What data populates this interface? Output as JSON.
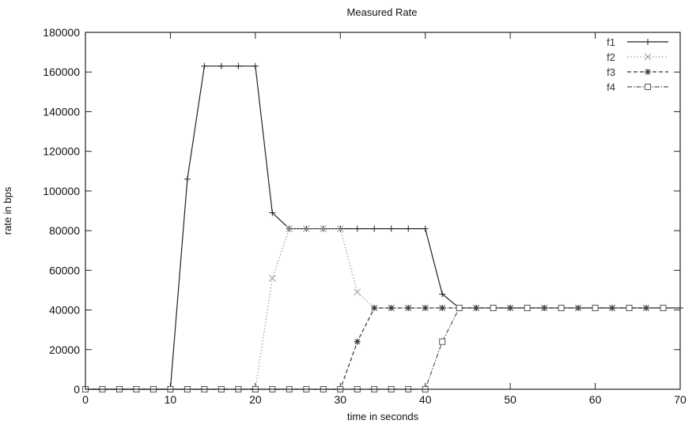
{
  "chart_data": {
    "type": "line",
    "title": "Measured Rate",
    "xlabel": "time in seconds",
    "ylabel": "rate in bps",
    "xlim": [
      0,
      70
    ],
    "ylim": [
      0,
      180000
    ],
    "xticks": [
      0,
      10,
      20,
      30,
      40,
      50,
      60,
      70
    ],
    "yticks": [
      0,
      20000,
      40000,
      60000,
      80000,
      100000,
      120000,
      140000,
      160000,
      180000
    ],
    "grid": false,
    "legend_position": "top-right",
    "series": [
      {
        "name": "f1",
        "color": "#222222",
        "dash": "solid",
        "marker": "plus",
        "x": [
          0,
          2,
          4,
          6,
          8,
          10,
          12,
          14,
          16,
          18,
          20,
          22,
          24,
          26,
          28,
          30,
          32,
          34,
          36,
          38,
          40,
          42,
          44,
          46,
          48,
          50,
          52,
          54,
          56,
          58,
          60,
          62,
          64,
          66,
          68,
          70
        ],
        "y": [
          0,
          0,
          0,
          0,
          0,
          0,
          106000,
          163000,
          163000,
          163000,
          163000,
          89000,
          81000,
          81000,
          81000,
          81000,
          81000,
          81000,
          81000,
          81000,
          81000,
          48000,
          41000,
          41000,
          41000,
          41000,
          41000,
          41000,
          41000,
          41000,
          41000,
          41000,
          41000,
          41000,
          41000,
          41000
        ]
      },
      {
        "name": "f2",
        "color": "#9a9a9a",
        "dash": "dotted",
        "marker": "cross",
        "x": [
          0,
          2,
          4,
          6,
          8,
          10,
          12,
          14,
          16,
          18,
          20,
          22,
          24,
          26,
          28,
          30,
          32,
          34,
          36,
          38,
          40,
          42,
          44,
          46,
          48,
          50,
          52,
          54,
          56,
          58,
          60,
          62,
          64,
          66,
          68
        ],
        "y": [
          0,
          0,
          0,
          0,
          0,
          0,
          0,
          0,
          0,
          0,
          0,
          56000,
          81000,
          81000,
          81000,
          81000,
          49000,
          41000,
          41000,
          41000,
          41000,
          41000,
          41000,
          41000,
          41000,
          41000,
          41000,
          41000,
          41000,
          41000,
          41000,
          41000,
          41000,
          41000,
          41000
        ]
      },
      {
        "name": "f3",
        "color": "#333333",
        "dash": "dashed",
        "marker": "star",
        "x": [
          0,
          2,
          4,
          6,
          8,
          10,
          12,
          14,
          16,
          18,
          20,
          22,
          24,
          26,
          28,
          30,
          32,
          34,
          36,
          38,
          40,
          42,
          44,
          46,
          48,
          50,
          52,
          54,
          56,
          58,
          60,
          62,
          64,
          66,
          68
        ],
        "y": [
          0,
          0,
          0,
          0,
          0,
          0,
          0,
          0,
          0,
          0,
          0,
          0,
          0,
          0,
          0,
          0,
          24000,
          41000,
          41000,
          41000,
          41000,
          41000,
          41000,
          41000,
          41000,
          41000,
          41000,
          41000,
          41000,
          41000,
          41000,
          41000,
          41000,
          41000,
          41000
        ]
      },
      {
        "name": "f4",
        "color": "#555555",
        "dash": "dashdot",
        "marker": "square",
        "x": [
          0,
          2,
          4,
          6,
          8,
          10,
          12,
          14,
          16,
          18,
          20,
          22,
          24,
          26,
          28,
          30,
          32,
          34,
          36,
          38,
          40,
          42,
          44,
          48,
          52,
          56,
          60,
          64,
          68
        ],
        "y": [
          0,
          0,
          0,
          0,
          0,
          0,
          0,
          0,
          0,
          0,
          0,
          0,
          0,
          0,
          0,
          0,
          0,
          0,
          0,
          0,
          0,
          24000,
          41000,
          41000,
          41000,
          41000,
          41000,
          41000,
          41000
        ]
      }
    ]
  }
}
